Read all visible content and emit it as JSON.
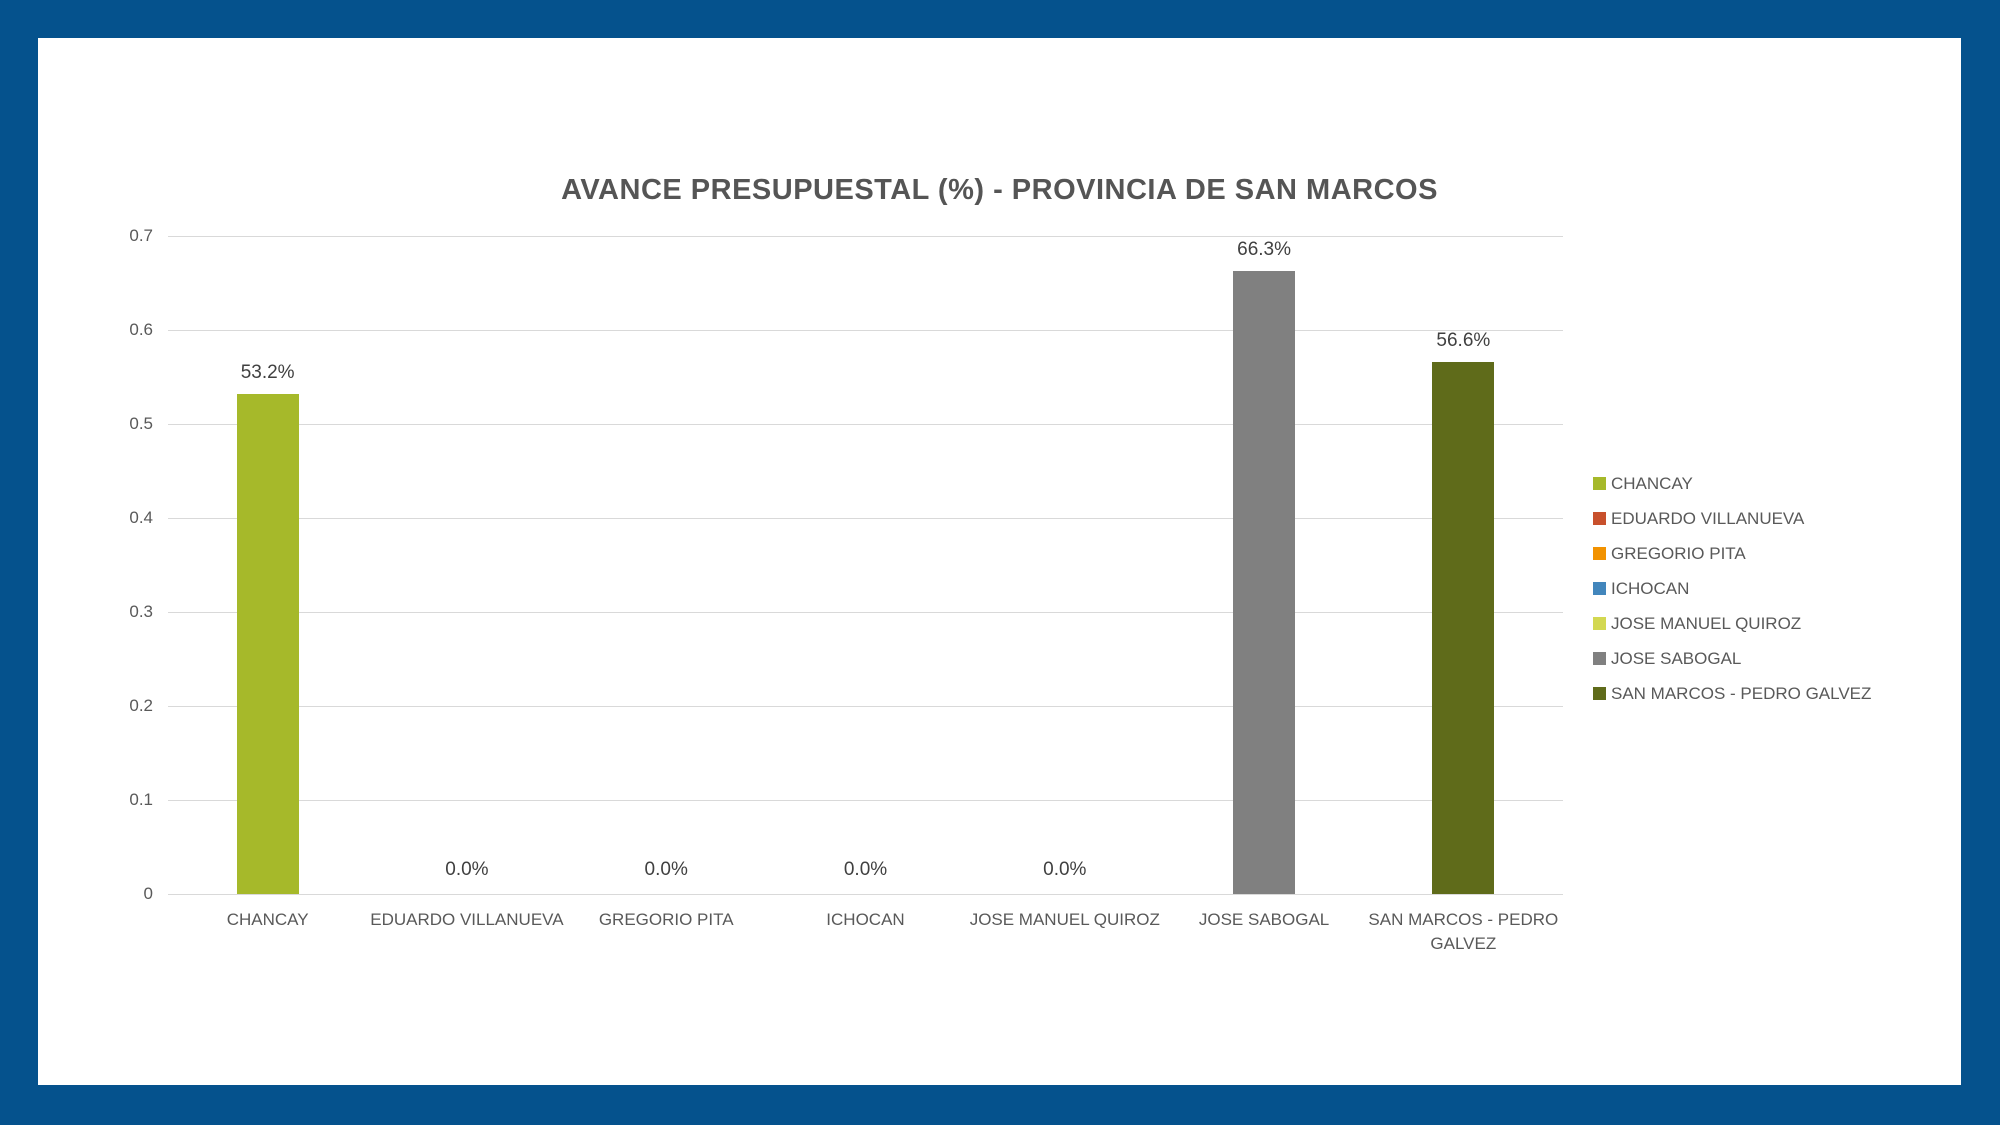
{
  "window": {
    "frame_color": "#05528d",
    "canvas_color": "#ffffff"
  },
  "chart_data": {
    "type": "bar",
    "title": "AVANCE PRESUPUESTAL (%) - PROVINCIA DE SAN MARCOS",
    "categories": [
      "CHANCAY",
      "EDUARDO VILLANUEVA",
      "GREGORIO PITA",
      "ICHOCAN",
      "JOSE MANUEL QUIROZ",
      "JOSE SABOGAL",
      "SAN MARCOS - PEDRO GALVEZ"
    ],
    "values": [
      0.532,
      0.0,
      0.0,
      0.0,
      0.0,
      0.663,
      0.566
    ],
    "data_labels": [
      "53.2%",
      "0.0%",
      "0.0%",
      "0.0%",
      "0.0%",
      "66.3%",
      "56.6%"
    ],
    "bar_colors": [
      "#a6b92a",
      "#c8502c",
      "#f29200",
      "#4286bc",
      "#d3d851",
      "#808080",
      "#5f6b1a"
    ],
    "xlabel": "",
    "ylabel": "",
    "ylim": [
      0,
      0.7
    ],
    "y_tick_labels": [
      "0",
      "0.1",
      "0.2",
      "0.3",
      "0.4",
      "0.5",
      "0.6",
      "0.7"
    ],
    "grid": true,
    "grid_color": "#d9d9d9",
    "axis_text_color": "#595959",
    "data_label_color": "#404040",
    "title_color": "#555555",
    "legend_position": "right",
    "legend": {
      "items": [
        {
          "label": "CHANCAY",
          "color": "#a6b92a"
        },
        {
          "label": "EDUARDO VILLANUEVA",
          "color": "#c8502c"
        },
        {
          "label": "GREGORIO PITA",
          "color": "#f29200"
        },
        {
          "label": "ICHOCAN",
          "color": "#4286bc"
        },
        {
          "label": "JOSE MANUEL QUIROZ",
          "color": "#d3d851"
        },
        {
          "label": "JOSE SABOGAL",
          "color": "#808080"
        },
        {
          "label": "SAN MARCOS - PEDRO GALVEZ",
          "color": "#5f6b1a"
        }
      ]
    }
  }
}
